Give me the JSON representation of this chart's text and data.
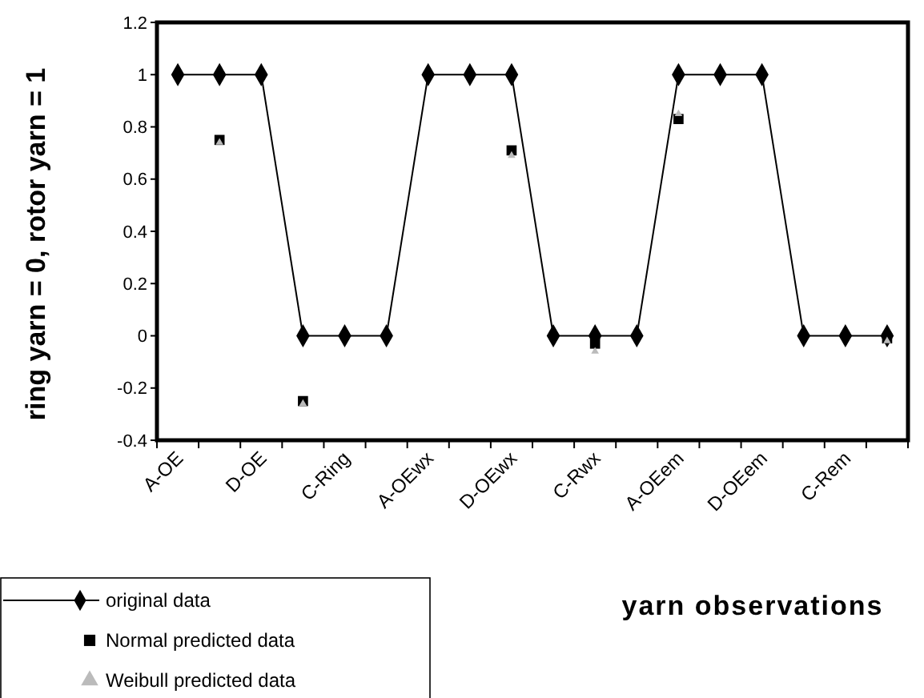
{
  "chart_data": {
    "type": "line",
    "xlabel": "yarn observations",
    "ylabel": "ring yarn = 0, rotor yarn = 1",
    "categories": [
      "A-OE",
      null,
      "D-OE",
      null,
      "C-Ring",
      null,
      "A-OEwx",
      null,
      "D-OEwx",
      null,
      "C-Rwx",
      null,
      "A-OEem",
      null,
      "D-OEem",
      null,
      "C-Rem",
      null
    ],
    "series": [
      {
        "name": "original data",
        "marker": "diamond",
        "color": "#000000",
        "values": [
          1,
          1,
          1,
          0,
          0,
          0,
          1,
          1,
          1,
          0,
          0,
          0,
          1,
          1,
          1,
          0,
          0,
          0
        ]
      },
      {
        "name": "Normal predicted data",
        "type": "scatter",
        "marker": "square",
        "color": "#000000",
        "values": [
          null,
          0.75,
          null,
          -0.25,
          null,
          null,
          null,
          null,
          0.71,
          null,
          -0.03,
          null,
          0.83,
          null,
          null,
          null,
          null,
          -0.01
        ]
      },
      {
        "name": "Weibull predicted data",
        "type": "scatter",
        "marker": "triangle",
        "color": "#bbbbbb",
        "values": [
          null,
          0.74,
          null,
          -0.26,
          null,
          null,
          null,
          null,
          0.69,
          null,
          -0.06,
          null,
          0.85,
          null,
          null,
          null,
          null,
          -0.02
        ]
      }
    ],
    "ylim": [
      -0.4,
      1.2
    ],
    "yticks": [
      -0.4,
      -0.2,
      0,
      0.2,
      0.4,
      0.6,
      0.8,
      1,
      1.2
    ],
    "grid": false,
    "legend": "bottom left"
  }
}
